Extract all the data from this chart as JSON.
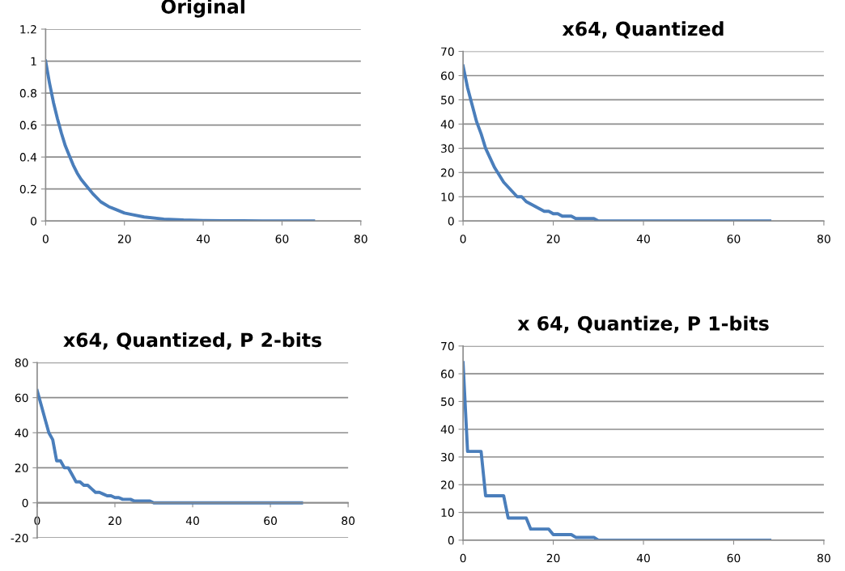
{
  "chart_data": [
    {
      "type": "line",
      "title": "Original",
      "x": [
        0,
        1,
        2,
        3,
        4,
        5,
        6,
        7,
        8,
        9,
        10,
        12,
        14,
        16,
        18,
        20,
        22,
        25,
        30,
        35,
        40,
        45,
        50,
        55,
        60,
        68
      ],
      "series": [
        {
          "color": "#4a7ebb",
          "values": [
            1,
            0.86,
            0.74,
            0.64,
            0.55,
            0.47,
            0.41,
            0.35,
            0.3,
            0.26,
            0.23,
            0.17,
            0.12,
            0.09,
            0.07,
            0.05,
            0.04,
            0.025,
            0.012,
            0.006,
            0.003,
            0.002,
            0.001,
            0,
            0,
            0
          ]
        }
      ],
      "xlim": [
        0,
        80
      ],
      "xticks": [
        0,
        20,
        40,
        60,
        80
      ],
      "ylim": [
        0,
        1.2
      ],
      "yticks": [
        0,
        0.2,
        0.4,
        0.6,
        0.8,
        1,
        1.2
      ],
      "grid": "y",
      "legend": false,
      "marker": "none",
      "line_style": "solid"
    },
    {
      "type": "line",
      "title": "x64, Quantized",
      "x": [
        0,
        1,
        2,
        3,
        4,
        5,
        6,
        7,
        8,
        9,
        10,
        11,
        12,
        13,
        14,
        15,
        16,
        17,
        18,
        19,
        20,
        21,
        22,
        23,
        24,
        25,
        26,
        27,
        28,
        29,
        30,
        68
      ],
      "series": [
        {
          "color": "#4a7ebb",
          "values": [
            64,
            55,
            48,
            41,
            36,
            30,
            26,
            22,
            19,
            16,
            14,
            12,
            10,
            10,
            8,
            7,
            6,
            5,
            4,
            4,
            3,
            3,
            2,
            2,
            2,
            1,
            1,
            1,
            1,
            1,
            0,
            0
          ]
        }
      ],
      "xlim": [
        0,
        80
      ],
      "xticks": [
        0,
        20,
        40,
        60,
        80
      ],
      "ylim": [
        0,
        70
      ],
      "yticks": [
        0,
        10,
        20,
        30,
        40,
        50,
        60,
        70
      ],
      "grid": "y",
      "legend": false,
      "marker": "none",
      "line_style": "solid"
    },
    {
      "type": "line",
      "title": "x64, Quantized, P 2-bits",
      "x": [
        0,
        1,
        2,
        3,
        4,
        5,
        6,
        7,
        8,
        9,
        10,
        11,
        12,
        13,
        14,
        15,
        16,
        17,
        18,
        19,
        20,
        21,
        22,
        23,
        24,
        25,
        26,
        27,
        28,
        29,
        30,
        68
      ],
      "series": [
        {
          "color": "#4a7ebb",
          "values": [
            64,
            56,
            48,
            40,
            36,
            24,
            24,
            20,
            20,
            16,
            12,
            12,
            10,
            10,
            8,
            6,
            6,
            5,
            4,
            4,
            3,
            3,
            2,
            2,
            2,
            1,
            1,
            1,
            1,
            1,
            0,
            0
          ]
        }
      ],
      "xlim": [
        0,
        80
      ],
      "xticks": [
        0,
        20,
        40,
        60,
        80
      ],
      "ylim": [
        -20,
        80
      ],
      "yticks": [
        -20,
        0,
        20,
        40,
        60,
        80
      ],
      "grid": "y",
      "legend": false,
      "marker": "none",
      "line_style": "solid"
    },
    {
      "type": "line",
      "title": "x 64, Quantize, P 1-bits",
      "x": [
        0,
        1,
        4,
        5,
        9,
        10,
        14,
        15,
        19,
        20,
        24,
        25,
        29,
        30,
        68
      ],
      "series": [
        {
          "color": "#4a7ebb",
          "values": [
            64,
            32,
            32,
            16,
            16,
            8,
            8,
            4,
            4,
            2,
            2,
            1,
            1,
            0,
            0
          ]
        }
      ],
      "xlim": [
        0,
        80
      ],
      "xticks": [
        0,
        20,
        40,
        60,
        80
      ],
      "ylim": [
        0,
        70
      ],
      "yticks": [
        0,
        10,
        20,
        30,
        40,
        50,
        60,
        70
      ],
      "grid": "y",
      "legend": false,
      "marker": "none",
      "line_style": "solid"
    }
  ]
}
